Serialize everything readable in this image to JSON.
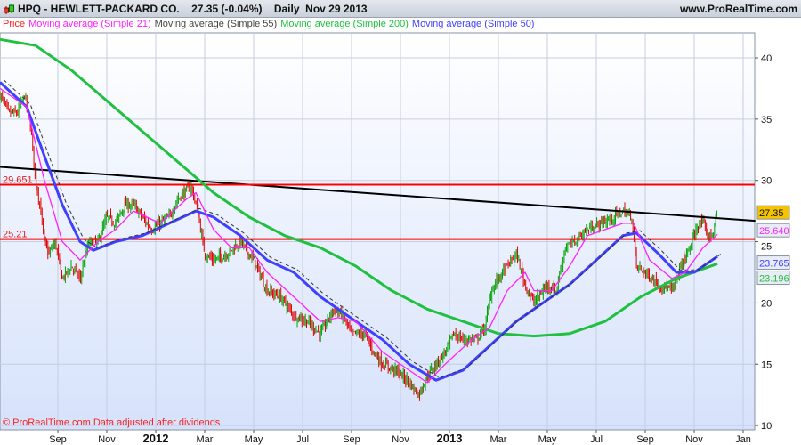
{
  "header": {
    "title": "HPQ - HEWLETT-PACKARD CO.    27.35 (-0.04%)    Daily  Nov 29 2013",
    "site": "www.ProRealTime.com",
    "icon": "candlestick-icon"
  },
  "legend": [
    {
      "label": "Price",
      "color": "#ff2020"
    },
    {
      "label": "Moving average (Simple 21)",
      "color": "#ff20ff"
    },
    {
      "label": "Moving average (Simple 55)",
      "color": "#444444"
    },
    {
      "label": "Moving average (Simple 200)",
      "color": "#20c040"
    },
    {
      "label": "Moving average (Simple 50)",
      "color": "#4040ff"
    }
  ],
  "footer": "© ProRealTime.com Data adjusted after dividends",
  "chart_data": {
    "type": "line",
    "title": "HPQ - HEWLETT-PACKARD CO. Daily",
    "x_unit": "months since Sep 1 2011",
    "xlim": [
      -2.36,
      28.5
    ],
    "ylim": [
      9.6,
      42.1
    ],
    "yticks": [
      10,
      15,
      20,
      25,
      30,
      35,
      40
    ],
    "xticks": [
      {
        "t": 0,
        "label": "Sep"
      },
      {
        "t": 2,
        "label": "Nov"
      },
      {
        "t": 4,
        "label": "2012",
        "year": true
      },
      {
        "t": 6,
        "label": "Mar"
      },
      {
        "t": 8,
        "label": "May"
      },
      {
        "t": 10,
        "label": "Jul"
      },
      {
        "t": 12,
        "label": "Sep"
      },
      {
        "t": 14,
        "label": "Nov"
      },
      {
        "t": 16,
        "label": "2013",
        "year": true
      },
      {
        "t": 18,
        "label": "Mar"
      },
      {
        "t": 20,
        "label": "May"
      },
      {
        "t": 22,
        "label": "Jul"
      },
      {
        "t": 24,
        "label": "Sep"
      },
      {
        "t": 26,
        "label": "Nov"
      },
      {
        "t": 28,
        "label": "Jan"
      }
    ],
    "price": [
      [
        -2.36,
        37
      ],
      [
        -2.0,
        35.5
      ],
      [
        -1.64,
        35.5
      ],
      [
        -1.35,
        37
      ],
      [
        -1.09,
        34
      ],
      [
        -0.91,
        30
      ],
      [
        -0.73,
        28
      ],
      [
        -0.55,
        25
      ],
      [
        -0.36,
        24
      ],
      [
        -0.11,
        25
      ],
      [
        0.18,
        22
      ],
      [
        0.55,
        23
      ],
      [
        0.91,
        22
      ],
      [
        1.27,
        25
      ],
      [
        1.64,
        25
      ],
      [
        2.0,
        27
      ],
      [
        2.36,
        26.5
      ],
      [
        2.73,
        28
      ],
      [
        3.09,
        28
      ],
      [
        3.45,
        27
      ],
      [
        3.82,
        26
      ],
      [
        4.18,
        26.5
      ],
      [
        4.55,
        27
      ],
      [
        4.91,
        28.5
      ],
      [
        5.45,
        29.5
      ],
      [
        5.71,
        27.5
      ],
      [
        6.0,
        24
      ],
      [
        6.36,
        23.5
      ],
      [
        6.91,
        24
      ],
      [
        7.45,
        25
      ],
      [
        8.0,
        23.5
      ],
      [
        8.55,
        21
      ],
      [
        9.09,
        20.5
      ],
      [
        9.64,
        19
      ],
      [
        10.18,
        18.5
      ],
      [
        10.73,
        17.5
      ],
      [
        11.27,
        19.5
      ],
      [
        11.64,
        19
      ],
      [
        12.0,
        17.5
      ],
      [
        12.55,
        17.5
      ],
      [
        12.91,
        16
      ],
      [
        13.27,
        15
      ],
      [
        13.82,
        14.5
      ],
      [
        14.36,
        13.5
      ],
      [
        14.73,
        12.5
      ],
      [
        15.09,
        14
      ],
      [
        15.45,
        15
      ],
      [
        15.82,
        16
      ],
      [
        16.18,
        17.5
      ],
      [
        16.55,
        17
      ],
      [
        17.09,
        17
      ],
      [
        17.45,
        18
      ],
      [
        17.71,
        21
      ],
      [
        18.0,
        22
      ],
      [
        18.36,
        23
      ],
      [
        18.73,
        24
      ],
      [
        19.09,
        21.5
      ],
      [
        19.45,
        20
      ],
      [
        20.0,
        21.5
      ],
      [
        20.36,
        21
      ],
      [
        20.73,
        24.5
      ],
      [
        21.09,
        25
      ],
      [
        21.64,
        26
      ],
      [
        22.18,
        26.5
      ],
      [
        22.73,
        27
      ],
      [
        23.09,
        27.5
      ],
      [
        23.45,
        27
      ],
      [
        23.64,
        23
      ],
      [
        24.0,
        22.5
      ],
      [
        24.55,
        21.5
      ],
      [
        25.09,
        21
      ],
      [
        25.45,
        23
      ],
      [
        25.82,
        24.5
      ],
      [
        26.18,
        26.5
      ],
      [
        26.36,
        26.5
      ],
      [
        26.55,
        25.5
      ],
      [
        26.73,
        25.5
      ],
      [
        26.95,
        27.35
      ]
    ],
    "series": [
      {
        "name": "Moving average (Simple 200)",
        "color": "#20c040",
        "last": "23.196",
        "points": [
          [
            -2.36,
            41.5
          ],
          [
            -0.91,
            41
          ],
          [
            0.55,
            39
          ],
          [
            2.0,
            36.5
          ],
          [
            3.45,
            34
          ],
          [
            4.91,
            31.5
          ],
          [
            6.36,
            29
          ],
          [
            7.82,
            27
          ],
          [
            9.27,
            25.5
          ],
          [
            10.73,
            24.5
          ],
          [
            12.18,
            23
          ],
          [
            13.64,
            21
          ],
          [
            15.09,
            19.5
          ],
          [
            16.55,
            18.5
          ],
          [
            18.0,
            17.5
          ],
          [
            19.45,
            17.3
          ],
          [
            20.91,
            17.5
          ],
          [
            22.36,
            18.5
          ],
          [
            23.82,
            20.5
          ],
          [
            25.27,
            22
          ],
          [
            26.95,
            23.2
          ]
        ]
      },
      {
        "name": "Moving average (Simple 50)",
        "color": "#4040ff",
        "last": "23.765",
        "points": [
          [
            -2.36,
            38
          ],
          [
            -1.27,
            36
          ],
          [
            -0.55,
            32
          ],
          [
            0.18,
            28
          ],
          [
            0.91,
            25
          ],
          [
            1.45,
            24.3
          ],
          [
            2.36,
            25
          ],
          [
            3.45,
            25.5
          ],
          [
            4.55,
            26.5
          ],
          [
            5.64,
            27.5
          ],
          [
            6.36,
            27
          ],
          [
            7.45,
            25.5
          ],
          [
            8.55,
            23.5
          ],
          [
            9.64,
            22.5
          ],
          [
            10.73,
            20.5
          ],
          [
            12.18,
            18.5
          ],
          [
            13.27,
            17
          ],
          [
            14.36,
            15
          ],
          [
            15.45,
            13.7
          ],
          [
            16.55,
            14.5
          ],
          [
            17.64,
            16.5
          ],
          [
            18.73,
            18.5
          ],
          [
            19.82,
            20
          ],
          [
            20.91,
            21.5
          ],
          [
            22.0,
            23.5
          ],
          [
            23.09,
            25.5
          ],
          [
            23.64,
            25.7
          ],
          [
            24.55,
            24
          ],
          [
            25.27,
            22.5
          ],
          [
            26.0,
            22.5
          ],
          [
            26.95,
            23.8
          ]
        ]
      },
      {
        "name": "Moving average (Simple 21)",
        "color": "#ff20ff",
        "last": "25.640",
        "points": [
          [
            -2.36,
            37.5
          ],
          [
            -1.27,
            36
          ],
          [
            -0.55,
            30
          ],
          [
            0.18,
            25
          ],
          [
            0.91,
            23.5
          ],
          [
            1.64,
            25
          ],
          [
            2.36,
            26
          ],
          [
            3.09,
            27.5
          ],
          [
            4.18,
            26.5
          ],
          [
            5.27,
            28.5
          ],
          [
            5.64,
            29
          ],
          [
            6.36,
            26
          ],
          [
            7.09,
            24.5
          ],
          [
            7.82,
            24.5
          ],
          [
            8.55,
            22.5
          ],
          [
            9.64,
            20.5
          ],
          [
            10.73,
            18.5
          ],
          [
            11.45,
            18.8
          ],
          [
            12.18,
            18.5
          ],
          [
            13.27,
            16
          ],
          [
            14.36,
            14.5
          ],
          [
            15.09,
            13.5
          ],
          [
            15.82,
            15
          ],
          [
            16.91,
            17
          ],
          [
            17.64,
            18
          ],
          [
            18.36,
            21
          ],
          [
            19.09,
            22.5
          ],
          [
            19.45,
            21
          ],
          [
            20.18,
            21
          ],
          [
            20.91,
            23
          ],
          [
            21.64,
            25.5
          ],
          [
            23.09,
            26.5
          ],
          [
            23.53,
            26.5
          ],
          [
            24.18,
            23.5
          ],
          [
            25.09,
            22
          ],
          [
            25.64,
            22.5
          ],
          [
            26.36,
            24.5
          ],
          [
            26.95,
            25.6
          ]
        ]
      }
    ],
    "dashed_ma55_color": "#333333",
    "lines": [
      {
        "name": "trendline",
        "color": "#000000",
        "from": [
          -2.36,
          31.1
        ],
        "to": [
          28.5,
          26.7
        ]
      },
      {
        "name": "resistance",
        "color": "#ff0000",
        "value": 29.651,
        "label": "29.651"
      },
      {
        "name": "support",
        "color": "#ff0000",
        "value": 25.21,
        "label": "25.21"
      }
    ],
    "last_price": {
      "label": "27.35",
      "value": 27.35,
      "bg": "#f5c400"
    },
    "axis_label_25": "25"
  }
}
